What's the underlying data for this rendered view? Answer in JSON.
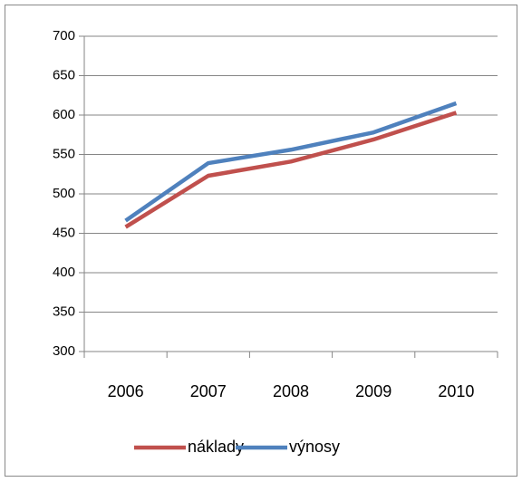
{
  "chart_data": {
    "type": "line",
    "categories": [
      "2006",
      "2007",
      "2008",
      "2009",
      "2010"
    ],
    "series": [
      {
        "name": "náklady",
        "color": "#c0504d",
        "values": [
          458,
          523,
          541,
          569,
          603
        ]
      },
      {
        "name": "výnosy",
        "color": "#4f81bd",
        "values": [
          466,
          539,
          556,
          578,
          615
        ]
      }
    ],
    "ylim": [
      300,
      700
    ],
    "yticks": [
      300,
      350,
      400,
      450,
      500,
      550,
      600,
      650,
      700
    ],
    "grid": true,
    "legend": "bottom"
  }
}
